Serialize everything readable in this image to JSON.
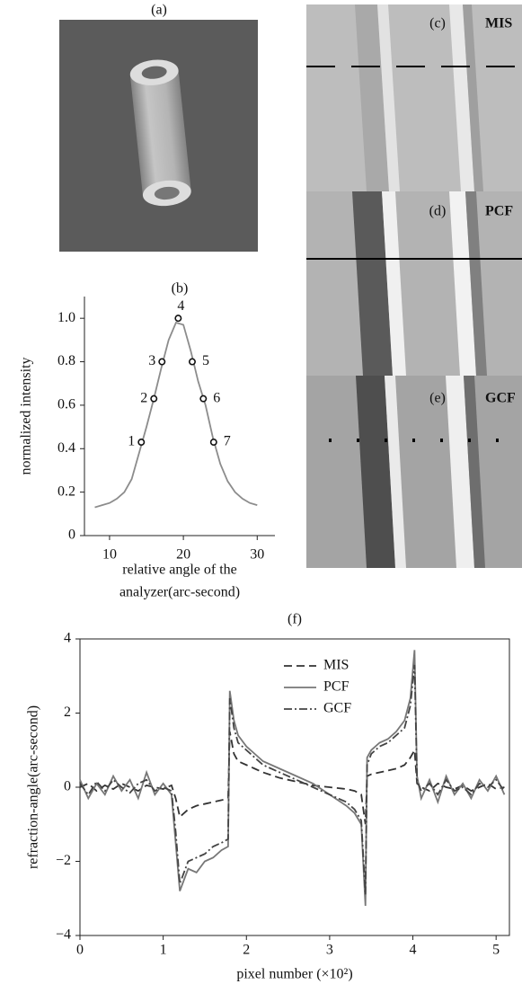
{
  "panels": {
    "a": "(a)",
    "c": {
      "label": "(c)",
      "name": "MIS"
    },
    "d": {
      "label": "(d)",
      "name": "PCF"
    },
    "e": {
      "label": "(e)",
      "name": "GCF"
    }
  },
  "chart_data": [
    {
      "type": "line",
      "title": "(b)",
      "ylabel": "normalized intensity",
      "xlabel": [
        "relative angle of the",
        "analyzer(arc-second)"
      ],
      "x": [
        8,
        9,
        10,
        11,
        12,
        13,
        14,
        15,
        16,
        17,
        18,
        19,
        20,
        21,
        22,
        23,
        24,
        25,
        26,
        27,
        28,
        29,
        30
      ],
      "series": [
        {
          "color": "#8c8c8c",
          "values": [
            0.13,
            0.14,
            0.15,
            0.17,
            0.2,
            0.26,
            0.38,
            0.5,
            0.63,
            0.77,
            0.9,
            0.98,
            0.97,
            0.85,
            0.71,
            0.6,
            0.45,
            0.33,
            0.25,
            0.2,
            0.17,
            0.15,
            0.14
          ]
        }
      ],
      "points": {
        "x": [
          14.3,
          16.0,
          17.1,
          19.3,
          21.2,
          22.7,
          24.1
        ],
        "values": [
          0.43,
          0.63,
          0.8,
          1.0,
          0.8,
          0.63,
          0.43
        ],
        "labels": [
          "1",
          "2",
          "3",
          "4",
          "5",
          "6",
          "7"
        ]
      },
      "xlim": [
        6.6,
        32.4
      ],
      "ylim": [
        0,
        1.1
      ],
      "xticks": [
        10,
        20,
        30
      ],
      "yticks": [
        0,
        0.2,
        0.4,
        0.6,
        0.8,
        {
          "value": 1,
          "label": "1.0"
        }
      ]
    },
    {
      "type": "line",
      "title": "(f)",
      "ylabel": "refraction-angle(arc-second)",
      "xlabel": [
        "pixel number  (×10²)"
      ],
      "x": [
        0,
        0.1,
        0.2,
        0.3,
        0.4,
        0.5,
        0.6,
        0.7,
        0.8,
        0.9,
        1.0,
        1.1,
        1.15,
        1.2,
        1.3,
        1.4,
        1.5,
        1.6,
        1.7,
        1.78,
        1.8,
        1.85,
        1.9,
        2.0,
        2.1,
        2.2,
        2.4,
        2.6,
        2.8,
        3.0,
        3.2,
        3.3,
        3.38,
        3.43,
        3.45,
        3.5,
        3.6,
        3.7,
        3.8,
        3.9,
        3.97,
        4.02,
        4.05,
        4.1,
        4.2,
        4.3,
        4.4,
        4.5,
        4.6,
        4.7,
        4.8,
        4.9,
        5.0,
        5.1
      ],
      "series": [
        {
          "name": "MIS",
          "color": "#333333",
          "dash": "dashed",
          "values": [
            0,
            0.1,
            -0.1,
            0.05,
            -0.05,
            0.1,
            0,
            -0.1,
            0.05,
            0,
            -0.05,
            0.05,
            -0.3,
            -0.8,
            -0.6,
            -0.5,
            -0.45,
            -0.4,
            -0.35,
            -0.3,
            1.5,
            0.9,
            0.7,
            0.6,
            0.5,
            0.4,
            0.25,
            0.15,
            0.05,
            0,
            -0.05,
            -0.1,
            -0.2,
            -1.0,
            0.3,
            0.35,
            0.4,
            0.45,
            0.5,
            0.6,
            0.8,
            1.0,
            0.1,
            0,
            -0.1,
            0.1,
            0,
            -0.05,
            0.05,
            -0.1,
            0,
            0.1,
            -0.05,
            0
          ]
        },
        {
          "name": "PCF",
          "color": "#777777",
          "dash": "solid",
          "values": [
            0.2,
            -0.3,
            0.1,
            -0.2,
            0.3,
            -0.1,
            0.2,
            -0.3,
            0.4,
            -0.2,
            0.1,
            -0.2,
            -1.5,
            -2.8,
            -2.2,
            -2.3,
            -2.0,
            -1.9,
            -1.7,
            -1.6,
            2.6,
            1.8,
            1.4,
            1.1,
            0.9,
            0.7,
            0.5,
            0.3,
            0.1,
            -0.2,
            -0.5,
            -0.7,
            -1.0,
            -3.2,
            0.8,
            1.0,
            1.2,
            1.3,
            1.5,
            1.8,
            2.4,
            3.7,
            0.3,
            -0.3,
            0.2,
            -0.4,
            0.3,
            -0.2,
            0.1,
            -0.3,
            0.2,
            -0.1,
            0.3,
            -0.2
          ]
        },
        {
          "name": "GCF",
          "color": "#444444",
          "dash": "dashdot",
          "values": [
            0.1,
            -0.2,
            0.15,
            -0.1,
            0.2,
            0,
            -0.15,
            0.1,
            0.2,
            -0.1,
            0,
            -0.1,
            -1.2,
            -2.6,
            -2.0,
            -1.9,
            -1.8,
            -1.6,
            -1.5,
            -1.4,
            2.4,
            1.6,
            1.2,
            1.0,
            0.8,
            0.6,
            0.4,
            0.2,
            0,
            -0.2,
            -0.4,
            -0.6,
            -0.9,
            -2.9,
            0.6,
            0.9,
            1.1,
            1.2,
            1.4,
            1.6,
            2.2,
            3.3,
            0.2,
            -0.1,
            0.1,
            -0.2,
            0.2,
            -0.1,
            0,
            -0.2,
            0.1,
            0,
            0.2,
            -0.1
          ]
        }
      ],
      "xlim": [
        0,
        5.16
      ],
      "ylim": [
        -4,
        4
      ],
      "xticks": [
        0,
        1,
        2,
        3,
        4,
        5
      ],
      "yticks": [
        {
          "value": -4,
          "label": "−4"
        },
        {
          "value": -2,
          "label": "−2"
        },
        0,
        2,
        4
      ],
      "frame": true,
      "legend": "top-center"
    }
  ]
}
